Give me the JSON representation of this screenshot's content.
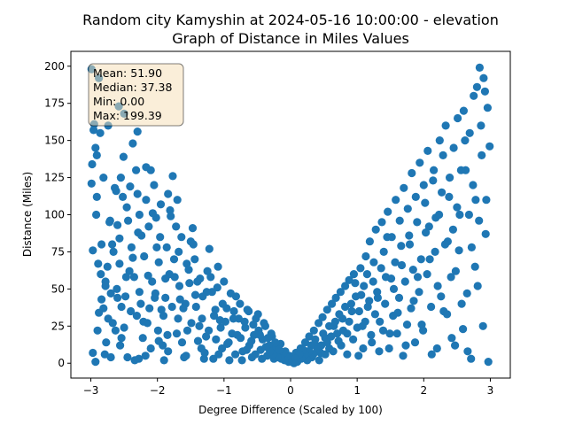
{
  "chart_data": {
    "type": "scatter",
    "title": "Random city Kamyshin at 2024-05-16 10:00:00  - elevation",
    "subtitle": "Graph of Distance in Miles Values",
    "xlabel": "Degree Difference (Scaled by 100)",
    "ylabel": "Distance (Miles)",
    "xlim": [
      -3.3,
      3.3
    ],
    "ylim": [
      -10,
      210
    ],
    "xticks": [
      -3,
      -2,
      -1,
      0,
      1,
      2,
      3
    ],
    "yticks": [
      0,
      25,
      50,
      75,
      100,
      125,
      150,
      175,
      200
    ],
    "grid": false,
    "point_color": "#1f77b4",
    "stats_box": {
      "position": "top-left",
      "background": "#f5deb3",
      "lines": [
        "Mean: 51.90",
        "Median: 37.38",
        "Min: 0.00",
        "Max: 199.39"
      ]
    },
    "points": [
      [
        -2.99,
        198
      ],
      [
        -2.88,
        192
      ],
      [
        -2.96,
        157
      ],
      [
        -2.93,
        145
      ],
      [
        -2.98,
        134
      ],
      [
        -2.99,
        121
      ],
      [
        -2.91,
        140
      ],
      [
        -2.86,
        155
      ],
      [
        -2.92,
        100
      ],
      [
        -2.97,
        76
      ],
      [
        -2.89,
        67
      ],
      [
        -2.85,
        60
      ],
      [
        -2.84,
        43
      ],
      [
        -2.9,
        22
      ],
      [
        -2.97,
        7
      ],
      [
        -2.93,
        1
      ],
      [
        -2.79,
        6
      ],
      [
        -2.81,
        37
      ],
      [
        -2.78,
        52
      ],
      [
        -2.72,
        95
      ],
      [
        -2.68,
        80
      ],
      [
        -2.75,
        65
      ],
      [
        -2.7,
        47
      ],
      [
        -2.74,
        30
      ],
      [
        -2.77,
        14
      ],
      [
        -2.7,
        4
      ],
      [
        -2.66,
        75
      ],
      [
        -2.62,
        116
      ],
      [
        -2.58,
        173
      ],
      [
        -2.5,
        168
      ],
      [
        -2.55,
        125
      ],
      [
        -2.52,
        112
      ],
      [
        -2.6,
        93
      ],
      [
        -2.57,
        67
      ],
      [
        -2.61,
        50
      ],
      [
        -2.54,
        38
      ],
      [
        -2.63,
        22
      ],
      [
        -2.56,
        12
      ],
      [
        -2.45,
        4
      ],
      [
        -2.5,
        24
      ],
      [
        -2.48,
        45
      ],
      [
        -2.42,
        62
      ],
      [
        -2.39,
        78
      ],
      [
        -2.46,
        105
      ],
      [
        -2.41,
        119
      ],
      [
        -2.37,
        148
      ],
      [
        -2.3,
        156
      ],
      [
        -2.32,
        130
      ],
      [
        -2.27,
        100
      ],
      [
        -2.29,
        88
      ],
      [
        -2.35,
        58
      ],
      [
        -2.25,
        40
      ],
      [
        -2.31,
        32
      ],
      [
        -2.22,
        17
      ],
      [
        -2.28,
        3
      ],
      [
        -2.18,
        5
      ],
      [
        -2.15,
        27
      ],
      [
        -2.12,
        37
      ],
      [
        -2.08,
        55
      ],
      [
        -2.2,
        72
      ],
      [
        -2.13,
        92
      ],
      [
        -2.17,
        110
      ],
      [
        -2.1,
        130
      ],
      [
        -2.05,
        120
      ],
      [
        -2.02,
        98
      ],
      [
        -1.96,
        85
      ],
      [
        -1.98,
        68
      ],
      [
        -2.03,
        47
      ],
      [
        -1.94,
        36
      ],
      [
        -1.99,
        22
      ],
      [
        -1.92,
        12
      ],
      [
        -1.9,
        2
      ],
      [
        -1.85,
        19
      ],
      [
        -1.88,
        44
      ],
      [
        -1.82,
        60
      ],
      [
        -1.86,
        78
      ],
      [
        -1.8,
        99
      ],
      [
        -1.84,
        114
      ],
      [
        -1.77,
        126
      ],
      [
        -1.7,
        110
      ],
      [
        -1.72,
        92
      ],
      [
        -1.68,
        75
      ],
      [
        -1.74,
        58
      ],
      [
        -1.66,
        43
      ],
      [
        -1.69,
        30
      ],
      [
        -1.63,
        14
      ],
      [
        -1.6,
        4
      ],
      [
        -1.55,
        22
      ],
      [
        -1.58,
        40
      ],
      [
        -1.52,
        54
      ],
      [
        -1.56,
        67
      ],
      [
        -1.5,
        82
      ],
      [
        -1.47,
        91
      ],
      [
        -1.44,
        70
      ],
      [
        -1.4,
        55
      ],
      [
        -1.42,
        38
      ],
      [
        -1.37,
        25
      ],
      [
        -1.34,
        10
      ],
      [
        -1.3,
        3
      ],
      [
        -1.27,
        18
      ],
      [
        -1.32,
        45
      ],
      [
        -1.25,
        62
      ],
      [
        -1.22,
        77
      ],
      [
        -1.18,
        48
      ],
      [
        -1.15,
        32
      ],
      [
        -1.12,
        16
      ],
      [
        -1.08,
        6
      ],
      [
        -1.05,
        24
      ],
      [
        -1.1,
        51
      ],
      [
        -1.02,
        40
      ],
      [
        -0.98,
        28
      ],
      [
        -0.95,
        13
      ],
      [
        -0.92,
        2
      ],
      [
        -0.88,
        20
      ],
      [
        -0.85,
        35
      ],
      [
        -0.82,
        45
      ],
      [
        -0.78,
        30
      ],
      [
        -0.75,
        17
      ],
      [
        -0.72,
        8
      ],
      [
        -0.68,
        24
      ],
      [
        -0.65,
        36
      ],
      [
        -0.62,
        12
      ],
      [
        -0.58,
        4
      ],
      [
        -0.55,
        19
      ],
      [
        -0.52,
        30
      ],
      [
        -0.48,
        22
      ],
      [
        -0.45,
        9
      ],
      [
        -0.42,
        16
      ],
      [
        -0.38,
        25
      ],
      [
        -0.35,
        5
      ],
      [
        -0.32,
        12
      ],
      [
        -0.28,
        18
      ],
      [
        -0.25,
        3
      ],
      [
        -0.22,
        10
      ],
      [
        -0.18,
        6
      ],
      [
        -0.15,
        13
      ],
      [
        -0.12,
        4
      ],
      [
        -0.08,
        8
      ],
      [
        -0.05,
        2
      ],
      [
        -0.02,
        5
      ],
      [
        0.02,
        1
      ],
      [
        0.04,
        4
      ],
      [
        0.08,
        7
      ],
      [
        0.12,
        3
      ],
      [
        0.15,
        10
      ],
      [
        0.18,
        5
      ],
      [
        0.22,
        14
      ],
      [
        0.25,
        8
      ],
      [
        0.28,
        18
      ],
      [
        0.32,
        4
      ],
      [
        0.35,
        22
      ],
      [
        0.38,
        12
      ],
      [
        0.42,
        27
      ],
      [
        0.45,
        7
      ],
      [
        0.48,
        31
      ],
      [
        0.52,
        17
      ],
      [
        0.55,
        36
      ],
      [
        0.58,
        10
      ],
      [
        0.62,
        40
      ],
      [
        0.65,
        25
      ],
      [
        0.68,
        44
      ],
      [
        0.72,
        15
      ],
      [
        0.75,
        48
      ],
      [
        0.78,
        30
      ],
      [
        0.82,
        52
      ],
      [
        0.85,
        20
      ],
      [
        0.88,
        56
      ],
      [
        0.92,
        35
      ],
      [
        0.95,
        60
      ],
      [
        0.98,
        45
      ],
      [
        1.02,
        5
      ],
      [
        1.05,
        64
      ],
      [
        1.08,
        25
      ],
      [
        1.1,
        52
      ],
      [
        1.13,
        72
      ],
      [
        1.16,
        38
      ],
      [
        1.19,
        82
      ],
      [
        1.22,
        14
      ],
      [
        1.25,
        68
      ],
      [
        1.28,
        90
      ],
      [
        1.31,
        44
      ],
      [
        1.34,
        28
      ],
      [
        1.37,
        95
      ],
      [
        1.4,
        75
      ],
      [
        1.43,
        58
      ],
      [
        1.46,
        102
      ],
      [
        1.49,
        20
      ],
      [
        1.52,
        85
      ],
      [
        1.55,
        50
      ],
      [
        1.58,
        110
      ],
      [
        1.61,
        34
      ],
      [
        1.64,
        96
      ],
      [
        1.67,
        66
      ],
      [
        1.7,
        118
      ],
      [
        1.73,
        12
      ],
      [
        1.76,
        104
      ],
      [
        1.79,
        80
      ],
      [
        1.82,
        128
      ],
      [
        1.85,
        42
      ],
      [
        1.88,
        112
      ],
      [
        1.91,
        58
      ],
      [
        1.94,
        135
      ],
      [
        1.97,
        26
      ],
      [
        2.0,
        120
      ],
      [
        2.03,
        88
      ],
      [
        2.06,
        143
      ],
      [
        2.09,
        70
      ],
      [
        2.12,
        6
      ],
      [
        2.15,
        130
      ],
      [
        2.18,
        98
      ],
      [
        2.21,
        52
      ],
      [
        2.24,
        150
      ],
      [
        2.27,
        115
      ],
      [
        2.3,
        35
      ],
      [
        2.33,
        160
      ],
      [
        2.36,
        82
      ],
      [
        2.39,
        125
      ],
      [
        2.42,
        17
      ],
      [
        2.45,
        145
      ],
      [
        2.48,
        62
      ],
      [
        2.51,
        165
      ],
      [
        2.54,
        100
      ],
      [
        2.57,
        40
      ],
      [
        2.6,
        170
      ],
      [
        2.63,
        130
      ],
      [
        2.66,
        8
      ],
      [
        2.69,
        155
      ],
      [
        2.72,
        78
      ],
      [
        2.75,
        180
      ],
      [
        2.78,
        110
      ],
      [
        2.81,
        52
      ],
      [
        2.84,
        199
      ],
      [
        2.87,
        140
      ],
      [
        2.9,
        192
      ],
      [
        2.93,
        87
      ],
      [
        2.96,
        172
      ],
      [
        2.99,
        146
      ],
      [
        2.97,
        1
      ],
      [
        2.94,
        110
      ],
      [
        2.92,
        183
      ],
      [
        2.89,
        25
      ],
      [
        2.86,
        160
      ],
      [
        2.83,
        96
      ],
      [
        2.8,
        186
      ],
      [
        2.77,
        65
      ],
      [
        2.74,
        120
      ],
      [
        2.71,
        3
      ],
      [
        2.68,
        100
      ],
      [
        2.65,
        47
      ],
      [
        2.62,
        150
      ],
      [
        2.59,
        23
      ],
      [
        2.56,
        130
      ],
      [
        2.53,
        76
      ],
      [
        2.5,
        105
      ],
      [
        2.47,
        12
      ],
      [
        2.44,
        90
      ],
      [
        2.41,
        58
      ],
      [
        2.38,
        112
      ],
      [
        2.35,
        33
      ],
      [
        2.32,
        80
      ],
      [
        2.29,
        140
      ],
      [
        2.26,
        45
      ],
      [
        2.23,
        100
      ],
      [
        2.2,
        10
      ],
      [
        2.17,
        75
      ],
      [
        2.14,
        123
      ],
      [
        2.11,
        38
      ],
      [
        2.08,
        92
      ],
      [
        2.05,
        60
      ],
      [
        2.02,
        108
      ],
      [
        1.99,
        22
      ],
      [
        1.96,
        70
      ],
      [
        1.93,
        48
      ],
      [
        1.9,
        95
      ],
      [
        1.87,
        14
      ],
      [
        1.84,
        63
      ],
      [
        1.81,
        37
      ],
      [
        1.78,
        86
      ],
      [
        1.75,
        26
      ],
      [
        1.72,
        55
      ],
      [
        1.69,
        5
      ],
      [
        1.66,
        79
      ],
      [
        1.63,
        44
      ],
      [
        1.6,
        20
      ],
      [
        1.57,
        68
      ],
      [
        1.54,
        32
      ],
      [
        1.51,
        57
      ],
      [
        1.48,
        10
      ],
      [
        1.45,
        85
      ],
      [
        1.42,
        40
      ],
      [
        1.39,
        22
      ],
      [
        1.36,
        64
      ],
      [
        1.33,
        8
      ],
      [
        1.3,
        48
      ],
      [
        1.27,
        33
      ],
      [
        1.24,
        55
      ],
      [
        1.21,
        19
      ],
      [
        1.18,
        42
      ],
      [
        1.15,
        60
      ],
      [
        1.12,
        28
      ],
      [
        1.09,
        10
      ],
      [
        1.06,
        46
      ],
      [
        1.03,
        35
      ],
      [
        1.0,
        24
      ],
      [
        0.97,
        54
      ],
      [
        0.94,
        16
      ],
      [
        0.91,
        40
      ],
      [
        0.88,
        28
      ],
      [
        0.85,
        6
      ],
      [
        0.82,
        38
      ],
      [
        0.79,
        22
      ],
      [
        0.76,
        12
      ],
      [
        0.73,
        33
      ],
      [
        0.7,
        20
      ],
      [
        0.67,
        28
      ],
      [
        0.64,
        8
      ],
      [
        0.61,
        18
      ],
      [
        0.58,
        25
      ],
      [
        0.55,
        14
      ],
      [
        0.52,
        6
      ],
      [
        0.49,
        20
      ],
      [
        0.46,
        12
      ],
      [
        0.43,
        2
      ],
      [
        0.4,
        9
      ],
      [
        0.37,
        16
      ],
      [
        0.34,
        6
      ],
      [
        0.31,
        12
      ],
      [
        0.28,
        8
      ],
      [
        0.25,
        2
      ],
      [
        0.22,
        6
      ],
      [
        0.19,
        9
      ],
      [
        0.16,
        3
      ],
      [
        0.13,
        6
      ],
      [
        0.1,
        1
      ],
      [
        0.07,
        3
      ],
      [
        0.05,
        0
      ],
      [
        -0.03,
        1
      ],
      [
        -0.06,
        4
      ],
      [
        -0.09,
        2
      ],
      [
        -0.11,
        7
      ],
      [
        -0.14,
        3
      ],
      [
        -0.17,
        9
      ],
      [
        -0.2,
        4
      ],
      [
        -0.23,
        14
      ],
      [
        -0.26,
        6
      ],
      [
        -0.29,
        20
      ],
      [
        -0.31,
        8
      ],
      [
        -0.34,
        17
      ],
      [
        -0.37,
        11
      ],
      [
        -0.4,
        27
      ],
      [
        -0.43,
        3
      ],
      [
        -0.46,
        19
      ],
      [
        -0.49,
        33
      ],
      [
        -0.53,
        6
      ],
      [
        -0.56,
        26
      ],
      [
        -0.59,
        15
      ],
      [
        -0.63,
        35
      ],
      [
        -0.66,
        9
      ],
      [
        -0.69,
        28
      ],
      [
        -0.73,
        2
      ],
      [
        -0.76,
        40
      ],
      [
        -0.8,
        19
      ],
      [
        -0.83,
        6
      ],
      [
        -0.86,
        30
      ],
      [
        -0.9,
        47
      ],
      [
        -0.93,
        14
      ],
      [
        -0.96,
        37
      ],
      [
        -1.0,
        55
      ],
      [
        -1.03,
        10
      ],
      [
        -1.06,
        29
      ],
      [
        -1.09,
        65
      ],
      [
        -1.13,
        36
      ],
      [
        -1.16,
        3
      ],
      [
        -1.2,
        58
      ],
      [
        -1.23,
        22
      ],
      [
        -1.26,
        48
      ],
      [
        -1.29,
        7
      ],
      [
        -1.33,
        30
      ],
      [
        -1.36,
        57
      ],
      [
        -1.39,
        15
      ],
      [
        -1.43,
        46
      ],
      [
        -1.46,
        80
      ],
      [
        -1.49,
        27
      ],
      [
        -1.53,
        63
      ],
      [
        -1.57,
        5
      ],
      [
        -1.61,
        37
      ],
      [
        -1.64,
        85
      ],
      [
        -1.67,
        52
      ],
      [
        -1.71,
        20
      ],
      [
        -1.75,
        70
      ],
      [
        -1.78,
        38
      ],
      [
        -1.81,
        103
      ],
      [
        -1.84,
        8
      ],
      [
        -1.88,
        57
      ],
      [
        -1.91,
        32
      ],
      [
        -1.95,
        107
      ],
      [
        -1.98,
        15
      ],
      [
        -2.01,
        78
      ],
      [
        -2.04,
        44
      ],
      [
        -2.07,
        101
      ],
      [
        -2.1,
        10
      ],
      [
        -2.14,
        59
      ],
      [
        -2.17,
        132
      ],
      [
        -2.21,
        28
      ],
      [
        -2.24,
        86
      ],
      [
        -2.27,
        48
      ],
      [
        -2.3,
        114
      ],
      [
        -2.34,
        2
      ],
      [
        -2.37,
        71
      ],
      [
        -2.4,
        35
      ],
      [
        -2.44,
        96
      ],
      [
        -2.47,
        58
      ],
      [
        -2.51,
        139
      ],
      [
        -2.54,
        17
      ],
      [
        -2.57,
        84
      ],
      [
        -2.6,
        44
      ],
      [
        -2.64,
        118
      ],
      [
        -2.67,
        27
      ],
      [
        -2.71,
        96
      ],
      [
        -2.74,
        160
      ],
      [
        -2.78,
        55
      ],
      [
        -2.81,
        125
      ],
      [
        -2.84,
        80
      ],
      [
        -2.88,
        34
      ],
      [
        -2.91,
        112
      ],
      [
        -2.95,
        161
      ]
    ]
  }
}
